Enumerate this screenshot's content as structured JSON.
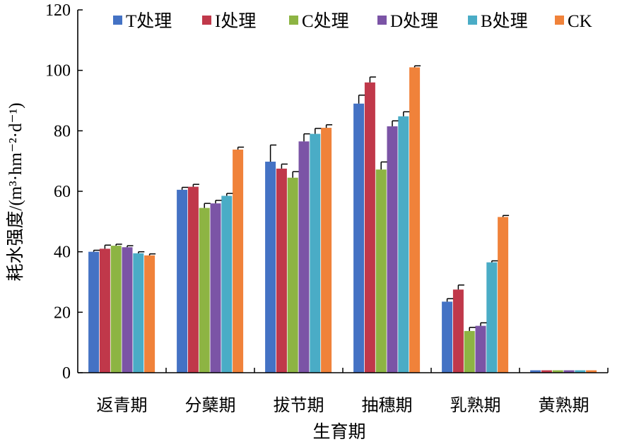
{
  "chart_data": {
    "type": "bar",
    "xlabel": "生育期",
    "ylabel": "耗水强度/(m³·hm⁻²·d⁻¹)",
    "ylim": [
      0,
      120
    ],
    "yticks": [
      0,
      20,
      40,
      60,
      80,
      100,
      120
    ],
    "categories": [
      "返青期",
      "分蘖期",
      "拔节期",
      "抽穗期",
      "乳熟期",
      "黄熟期"
    ],
    "legend_position": "top",
    "grid": false,
    "error_bars": true,
    "series": [
      {
        "name": "T处理",
        "color": "#4472C4",
        "values": [
          40.0,
          60.5,
          69.8,
          89.0,
          23.5,
          0.8
        ],
        "errors": [
          0.5,
          0.8,
          5.5,
          2.8,
          1.0,
          0
        ]
      },
      {
        "name": "I处理",
        "color": "#C0384A",
        "values": [
          41.0,
          61.5,
          67.5,
          96.0,
          27.5,
          0.8
        ],
        "errors": [
          1.2,
          0.8,
          1.5,
          1.8,
          1.5,
          0
        ]
      },
      {
        "name": "C处理",
        "color": "#8DB443",
        "values": [
          42.0,
          54.5,
          64.5,
          67.2,
          13.8,
          0.8
        ],
        "errors": [
          0.5,
          1.5,
          2.0,
          2.5,
          1.2,
          0
        ]
      },
      {
        "name": "D处理",
        "color": "#7B54A6",
        "values": [
          41.5,
          56.0,
          76.5,
          81.5,
          15.5,
          0.8
        ],
        "errors": [
          0.5,
          1.0,
          2.5,
          1.8,
          1.0,
          0
        ]
      },
      {
        "name": "B处理",
        "color": "#4AACC6",
        "values": [
          39.5,
          58.5,
          79.0,
          84.8,
          36.5,
          0.8
        ],
        "errors": [
          0.5,
          0.8,
          1.8,
          1.5,
          0.5,
          0
        ]
      },
      {
        "name": "CK",
        "color": "#F0823A",
        "values": [
          38.8,
          73.8,
          81.0,
          101.0,
          51.5,
          0.8
        ],
        "errors": [
          0.5,
          0.8,
          1.0,
          0.5,
          0.5,
          0
        ]
      }
    ]
  }
}
